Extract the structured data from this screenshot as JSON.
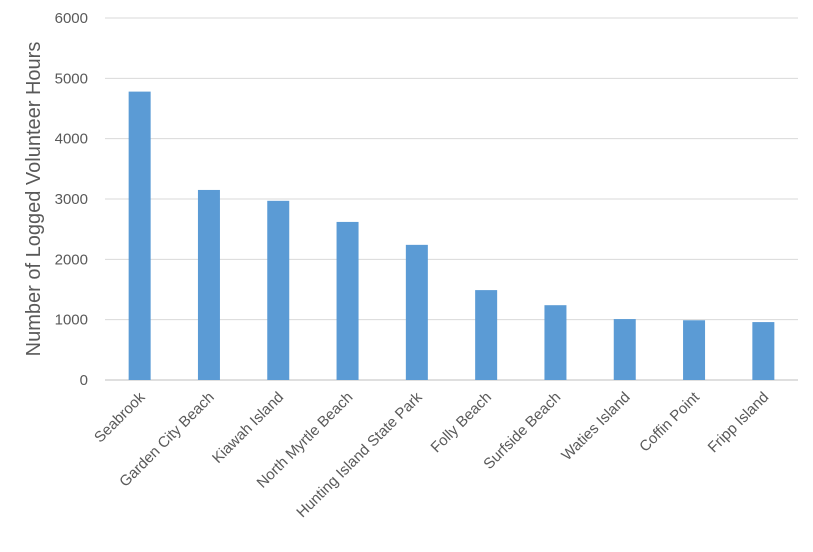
{
  "chart_data": {
    "type": "bar",
    "title": "",
    "xlabel": "",
    "ylabel": "Number of Logged Volunteer Hours",
    "ylim": [
      0,
      6000
    ],
    "yticks": [
      0,
      1000,
      2000,
      3000,
      4000,
      5000,
      6000
    ],
    "grid": true,
    "legend": "none",
    "bar_color": "#5b9bd5",
    "categories": [
      "Seabrook",
      "Garden City Beach",
      "Kiawah Island",
      "North Myrtle Beach",
      "Hunting Island State Park",
      "Folly Beach",
      "Surfside Beach",
      "Waties Island",
      "Coffin Point",
      "Fripp Island"
    ],
    "values": [
      4780,
      3150,
      2970,
      2620,
      2240,
      1490,
      1240,
      1010,
      990,
      960
    ]
  }
}
